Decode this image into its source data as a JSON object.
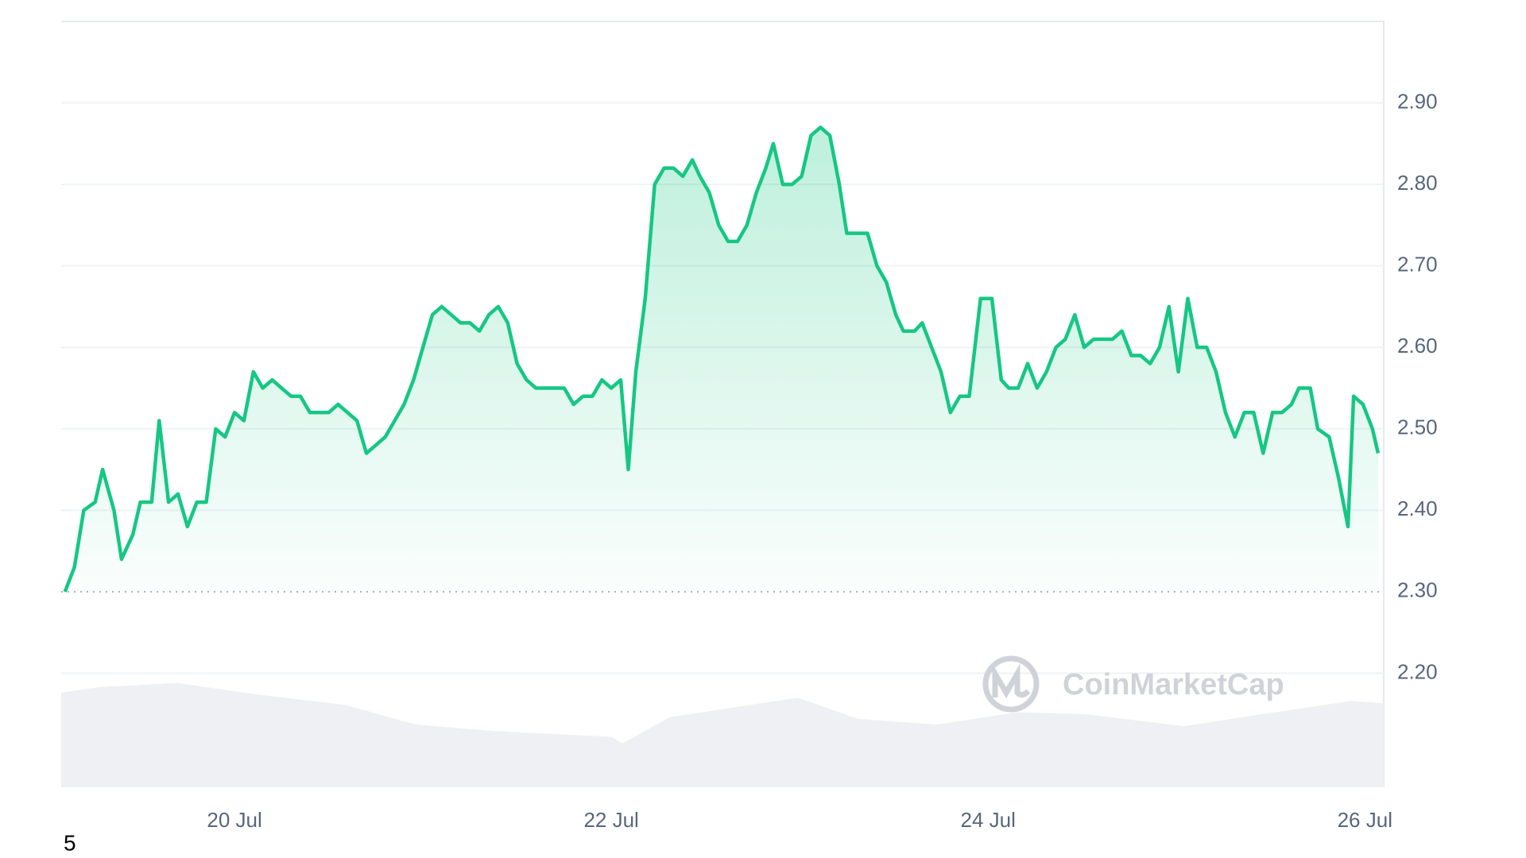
{
  "chart_data": {
    "type": "line",
    "x": [
      19.1,
      19.15,
      19.2,
      19.26,
      19.3,
      19.36,
      19.4,
      19.46,
      19.5,
      19.56,
      19.6,
      19.65,
      19.7,
      19.75,
      19.8,
      19.85,
      19.9,
      19.95,
      20.0,
      20.05,
      20.1,
      20.15,
      20.2,
      20.25,
      20.3,
      20.35,
      20.4,
      20.45,
      20.5,
      20.55,
      20.6,
      20.65,
      20.7,
      20.75,
      20.8,
      20.85,
      20.9,
      20.95,
      21.0,
      21.05,
      21.1,
      21.15,
      21.2,
      21.25,
      21.3,
      21.35,
      21.4,
      21.45,
      21.5,
      21.55,
      21.6,
      21.65,
      21.7,
      21.75,
      21.8,
      21.85,
      21.9,
      21.95,
      22.0,
      22.05,
      22.09,
      22.13,
      22.18,
      22.23,
      22.28,
      22.33,
      22.38,
      22.43,
      22.47,
      22.52,
      22.57,
      22.62,
      22.67,
      22.72,
      22.77,
      22.82,
      22.86,
      22.91,
      22.96,
      23.01,
      23.06,
      23.11,
      23.16,
      23.21,
      23.25,
      23.31,
      23.36,
      23.41,
      23.46,
      23.51,
      23.55,
      23.61,
      23.65,
      23.7,
      23.75,
      23.8,
      23.85,
      23.9,
      23.96,
      24.02,
      24.07,
      24.11,
      24.16,
      24.21,
      24.26,
      24.31,
      24.36,
      24.41,
      24.46,
      24.51,
      24.56,
      24.61,
      24.66,
      24.71,
      24.76,
      24.81,
      24.86,
      24.91,
      24.96,
      25.01,
      25.06,
      25.11,
      25.16,
      25.21,
      25.26,
      25.31,
      25.36,
      25.41,
      25.46,
      25.51,
      25.56,
      25.61,
      25.65,
      25.71,
      25.75,
      25.81,
      25.86,
      25.91,
      25.94,
      25.99,
      26.04,
      26.07
    ],
    "series": [
      {
        "color": "#16c784",
        "values": [
          2.3,
          2.33,
          2.4,
          2.41,
          2.45,
          2.4,
          2.34,
          2.37,
          2.41,
          2.41,
          2.51,
          2.41,
          2.42,
          2.38,
          2.41,
          2.41,
          2.5,
          2.49,
          2.52,
          2.51,
          2.57,
          2.55,
          2.56,
          2.55,
          2.54,
          2.54,
          2.52,
          2.52,
          2.52,
          2.53,
          2.52,
          2.51,
          2.47,
          2.48,
          2.49,
          2.51,
          2.53,
          2.56,
          2.6,
          2.64,
          2.65,
          2.64,
          2.63,
          2.63,
          2.62,
          2.64,
          2.65,
          2.63,
          2.58,
          2.56,
          2.55,
          2.55,
          2.55,
          2.55,
          2.53,
          2.54,
          2.54,
          2.56,
          2.55,
          2.56,
          2.45,
          2.57,
          2.66,
          2.8,
          2.82,
          2.82,
          2.81,
          2.83,
          2.81,
          2.79,
          2.75,
          2.73,
          2.73,
          2.75,
          2.79,
          2.82,
          2.85,
          2.8,
          2.8,
          2.81,
          2.86,
          2.87,
          2.86,
          2.8,
          2.74,
          2.74,
          2.74,
          2.7,
          2.68,
          2.64,
          2.62,
          2.62,
          2.63,
          2.6,
          2.57,
          2.52,
          2.54,
          2.54,
          2.66,
          2.66,
          2.56,
          2.55,
          2.55,
          2.58,
          2.55,
          2.57,
          2.6,
          2.61,
          2.64,
          2.6,
          2.61,
          2.61,
          2.61,
          2.62,
          2.59,
          2.59,
          2.58,
          2.6,
          2.65,
          2.57,
          2.66,
          2.6,
          2.6,
          2.57,
          2.52,
          2.49,
          2.52,
          2.52,
          2.47,
          2.52,
          2.52,
          2.53,
          2.55,
          2.55,
          2.5,
          2.49,
          2.44,
          2.38,
          2.54,
          2.53,
          2.5,
          2.47
        ]
      }
    ],
    "volume": {
      "color": "#eef0f3",
      "x": [
        19.08,
        19.28,
        19.7,
        20.12,
        20.59,
        20.96,
        21.38,
        22.0,
        22.06,
        22.31,
        22.99,
        23.31,
        23.73,
        24.15,
        24.51,
        25.04,
        25.46,
        25.93,
        26.1
      ],
      "values": [
        2.176,
        2.183,
        2.188,
        2.174,
        2.161,
        2.137,
        2.129,
        2.122,
        2.114,
        2.146,
        2.17,
        2.144,
        2.137,
        2.152,
        2.15,
        2.135,
        2.15,
        2.166,
        2.163
      ]
    },
    "baseline": 2.3,
    "xlim": [
      19.08,
      26.1
    ],
    "ylim": [
      2.06,
      3.0
    ],
    "xticks": [
      {
        "value": 20,
        "label": "20 Jul"
      },
      {
        "value": 22,
        "label": "22 Jul"
      },
      {
        "value": 24,
        "label": "24 Jul"
      },
      {
        "value": 26,
        "label": "26 Jul"
      }
    ],
    "yticks": [
      {
        "value": 2.2,
        "label": "2.20"
      },
      {
        "value": 2.3,
        "label": "2.30"
      },
      {
        "value": 2.4,
        "label": "2.40"
      },
      {
        "value": 2.5,
        "label": "2.50"
      },
      {
        "value": 2.6,
        "label": "2.60"
      },
      {
        "value": 2.7,
        "label": "2.70"
      },
      {
        "value": 2.8,
        "label": "2.80"
      },
      {
        "value": 2.9,
        "label": "2.90"
      }
    ],
    "grid": true,
    "watermark": "CoinMarketCap",
    "footnote": "5"
  }
}
